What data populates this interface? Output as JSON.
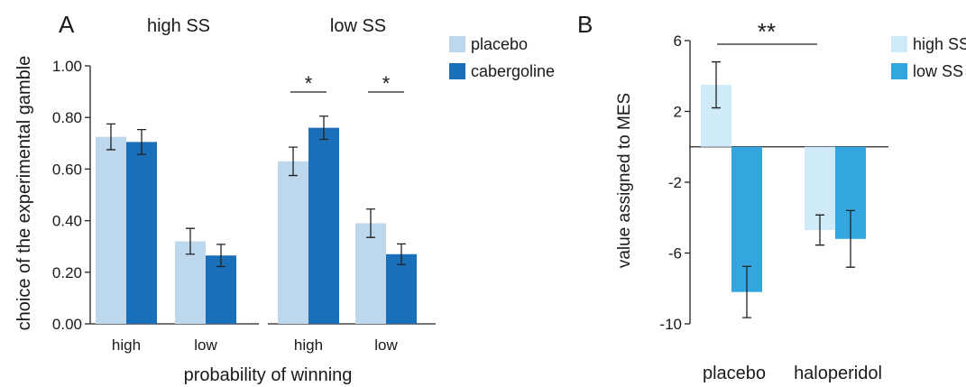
{
  "figure": {
    "panel_a_letter": "A",
    "panel_b_letter": "B"
  },
  "colors": {
    "placebo": "#bdd7ec",
    "cabergoline": "#1a6fb9",
    "high_ss": "#cfeaf8",
    "low_ss": "#33a6df"
  },
  "chart_data": [
    {
      "type": "bar",
      "panel": "A",
      "ylabel": "choice of the experimental gamble",
      "xlabel": "probability of winning",
      "ylim": [
        0,
        1.0
      ],
      "yticks": [
        "0.00",
        "0.20",
        "0.40",
        "0.60",
        "0.80",
        "1.00"
      ],
      "legend": {
        "placement": "top-right",
        "entries": [
          "placebo",
          "cabergoline"
        ]
      },
      "groups": [
        {
          "title": "high SS",
          "categories": [
            "high",
            "low"
          ],
          "series": [
            {
              "name": "placebo",
              "values": [
                0.725,
                0.32
              ],
              "errors": [
                0.05,
                0.05
              ]
            },
            {
              "name": "cabergoline",
              "values": [
                0.705,
                0.265
              ],
              "errors": [
                0.048,
                0.043
              ]
            }
          ],
          "significance": [
            "",
            ""
          ]
        },
        {
          "title": "low SS",
          "categories": [
            "high",
            "low"
          ],
          "series": [
            {
              "name": "placebo",
              "values": [
                0.63,
                0.39
              ],
              "errors": [
                0.055,
                0.055
              ]
            },
            {
              "name": "cabergoline",
              "values": [
                0.76,
                0.27
              ],
              "errors": [
                0.045,
                0.04
              ]
            }
          ],
          "significance": [
            "*",
            "*"
          ]
        }
      ]
    },
    {
      "type": "bar",
      "panel": "B",
      "ylabel": "value assigned to MES",
      "xlabel": "",
      "ylim": [
        -10,
        6
      ],
      "yticks": [
        "6",
        "2",
        "-2",
        "-6",
        "-10"
      ],
      "categories": [
        "placebo",
        "haloperidol"
      ],
      "legend": {
        "placement": "top-right",
        "entries": [
          "high SS",
          "low SS"
        ]
      },
      "series": [
        {
          "name": "high SS",
          "values": [
            3.5,
            -4.7
          ],
          "errors": [
            1.3,
            0.85
          ]
        },
        {
          "name": "low SS",
          "values": [
            -8.2,
            -5.2
          ],
          "errors": [
            1.45,
            1.6
          ]
        }
      ],
      "significance": {
        "label": "**"
      }
    }
  ]
}
